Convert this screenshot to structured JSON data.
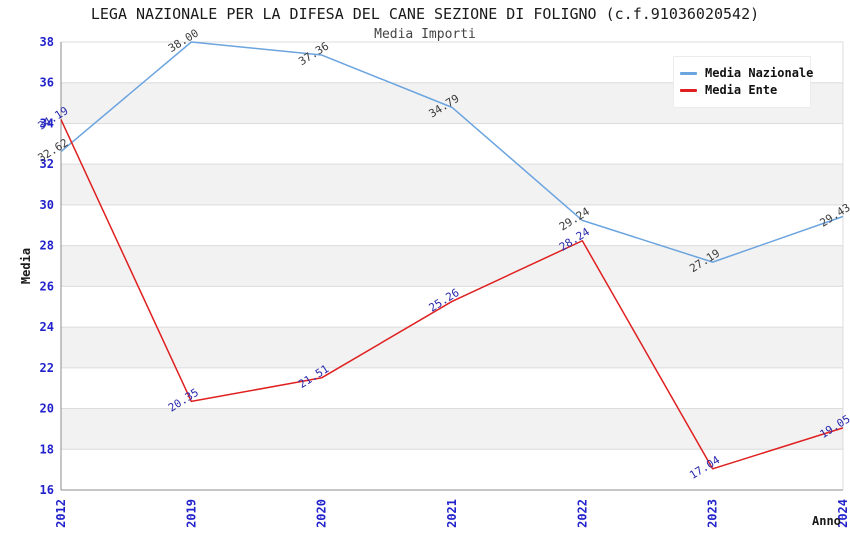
{
  "chart_data": {
    "type": "line",
    "title": "LEGA NAZIONALE PER LA DIFESA DEL CANE SEZIONE DI FOLIGNO (c.f.91036020542)",
    "subtitle": "Media Importi",
    "xlabel": "Anno",
    "ylabel": "Media",
    "categories": [
      "2012",
      "2019",
      "2020",
      "2021",
      "2022",
      "2023",
      "2024"
    ],
    "series": [
      {
        "name": "Media Nazionale",
        "color": "#6BA4DF",
        "label_color": "#3a3a3a",
        "values": [
          32.62,
          38.0,
          37.36,
          34.79,
          29.24,
          27.19,
          29.43
        ]
      },
      {
        "name": "Media Ente",
        "color": "#E02020",
        "label_color": "#2929AD",
        "values": [
          34.19,
          20.35,
          21.51,
          25.26,
          28.24,
          17.04,
          19.05
        ]
      }
    ],
    "ylim": [
      16,
      38
    ],
    "ytick_step": 2,
    "grid": "horizontal gridlines with alternating gray bands",
    "legend_position": "upper right",
    "value_label_format": "0.00",
    "value_label_rotation_deg": -32
  },
  "styles": {
    "tick_label_color": "#2222CC",
    "axis_line_color": "#8c8c8c",
    "grid_line_color": "#DCDCDC",
    "band_fill_color": "#F2F2F2",
    "plot_background": "#FFFFFF",
    "title_color": "#1a1a1a",
    "subtitle_color": "#444444"
  }
}
